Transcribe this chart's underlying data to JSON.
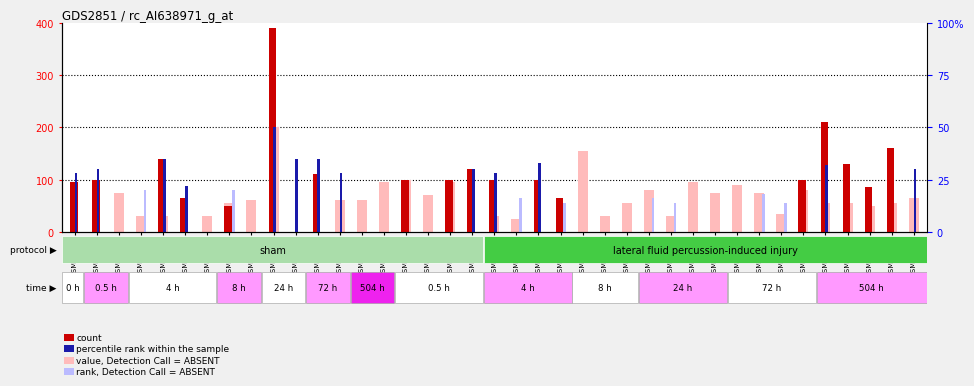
{
  "title": "GDS2851 / rc_AI638971_g_at",
  "samples": [
    "GSM44478",
    "GSM44496",
    "GSM44513",
    "GSM44488",
    "GSM44489",
    "GSM44494",
    "GSM44509",
    "GSM44486",
    "GSM44511",
    "GSM44528",
    "GSM44529",
    "GSM44467",
    "GSM44530",
    "GSM44490",
    "GSM44508",
    "GSM44483",
    "GSM44485",
    "GSM44495",
    "GSM44507",
    "GSM44473",
    "GSM44480",
    "GSM44492",
    "GSM44500",
    "GSM44533",
    "GSM44466",
    "GSM44498",
    "GSM44667",
    "GSM44491",
    "GSM44531",
    "GSM44532",
    "GSM44477",
    "GSM44482",
    "GSM44493",
    "GSM44484",
    "GSM44520",
    "GSM44549",
    "GSM44471",
    "GSM44481",
    "GSM44497"
  ],
  "count": [
    95,
    100,
    0,
    0,
    140,
    65,
    0,
    50,
    0,
    390,
    0,
    110,
    0,
    0,
    0,
    100,
    0,
    100,
    120,
    100,
    0,
    100,
    65,
    0,
    0,
    0,
    0,
    0,
    0,
    0,
    0,
    0,
    0,
    100,
    210,
    130,
    85,
    160,
    0
  ],
  "rank_pct": [
    28,
    30,
    0,
    0,
    35,
    22,
    0,
    0,
    0,
    50,
    35,
    35,
    28,
    0,
    0,
    0,
    0,
    0,
    30,
    28,
    0,
    33,
    0,
    0,
    0,
    0,
    0,
    0,
    0,
    0,
    0,
    0,
    0,
    0,
    32,
    0,
    0,
    0,
    30
  ],
  "value_absent": [
    0,
    0,
    75,
    30,
    30,
    0,
    30,
    55,
    60,
    200,
    0,
    0,
    60,
    60,
    95,
    100,
    70,
    95,
    0,
    30,
    25,
    0,
    25,
    155,
    30,
    55,
    80,
    30,
    95,
    75,
    90,
    75,
    35,
    80,
    55,
    55,
    50,
    55,
    65
  ],
  "rank_absent_pct": [
    0,
    0,
    0,
    20,
    0,
    0,
    0,
    20,
    0,
    0,
    0,
    0,
    0,
    0,
    0,
    0,
    0,
    0,
    0,
    0,
    16,
    0,
    14,
    0,
    0,
    0,
    16,
    14,
    0,
    0,
    0,
    18,
    14,
    0,
    0,
    0,
    0,
    0,
    0
  ],
  "ylim_left": [
    0,
    400
  ],
  "ylim_right": [
    0,
    100
  ],
  "color_count": "#cc0000",
  "color_rank": "#1a1aaa",
  "color_value_absent": "#ffbbbb",
  "color_rank_absent": "#bbbbff",
  "background_color": "#ffffff",
  "plot_bg": "#ffffff"
}
